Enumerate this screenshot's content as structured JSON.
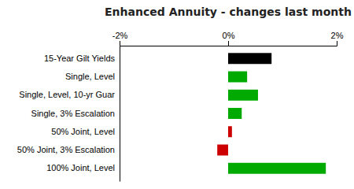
{
  "chart_data": {
    "type": "bar",
    "orientation": "horizontal",
    "title": "Enhanced Annuity - changes last month",
    "categories": [
      "15-Year Gilt Yields",
      "Single, Level",
      "Single, Level, 10-yr Guar",
      "Single, 3% Escalation",
      "50% Joint, Level",
      "50% Joint, 3% Escalation",
      "100% Joint, Level"
    ],
    "values": [
      0.8,
      0.35,
      0.55,
      0.25,
      0.07,
      -0.2,
      1.8
    ],
    "colors": [
      "#000000",
      "#00aa00",
      "#00aa00",
      "#00aa00",
      "#cc0000",
      "#cc0000",
      "#00aa00"
    ],
    "xlim": [
      -2.0,
      2.0
    ],
    "xticks": [
      {
        "value": -2,
        "label": "-2%"
      },
      {
        "value": 0,
        "label": "0%"
      },
      {
        "value": 2,
        "label": "2%"
      }
    ],
    "grid": false
  }
}
